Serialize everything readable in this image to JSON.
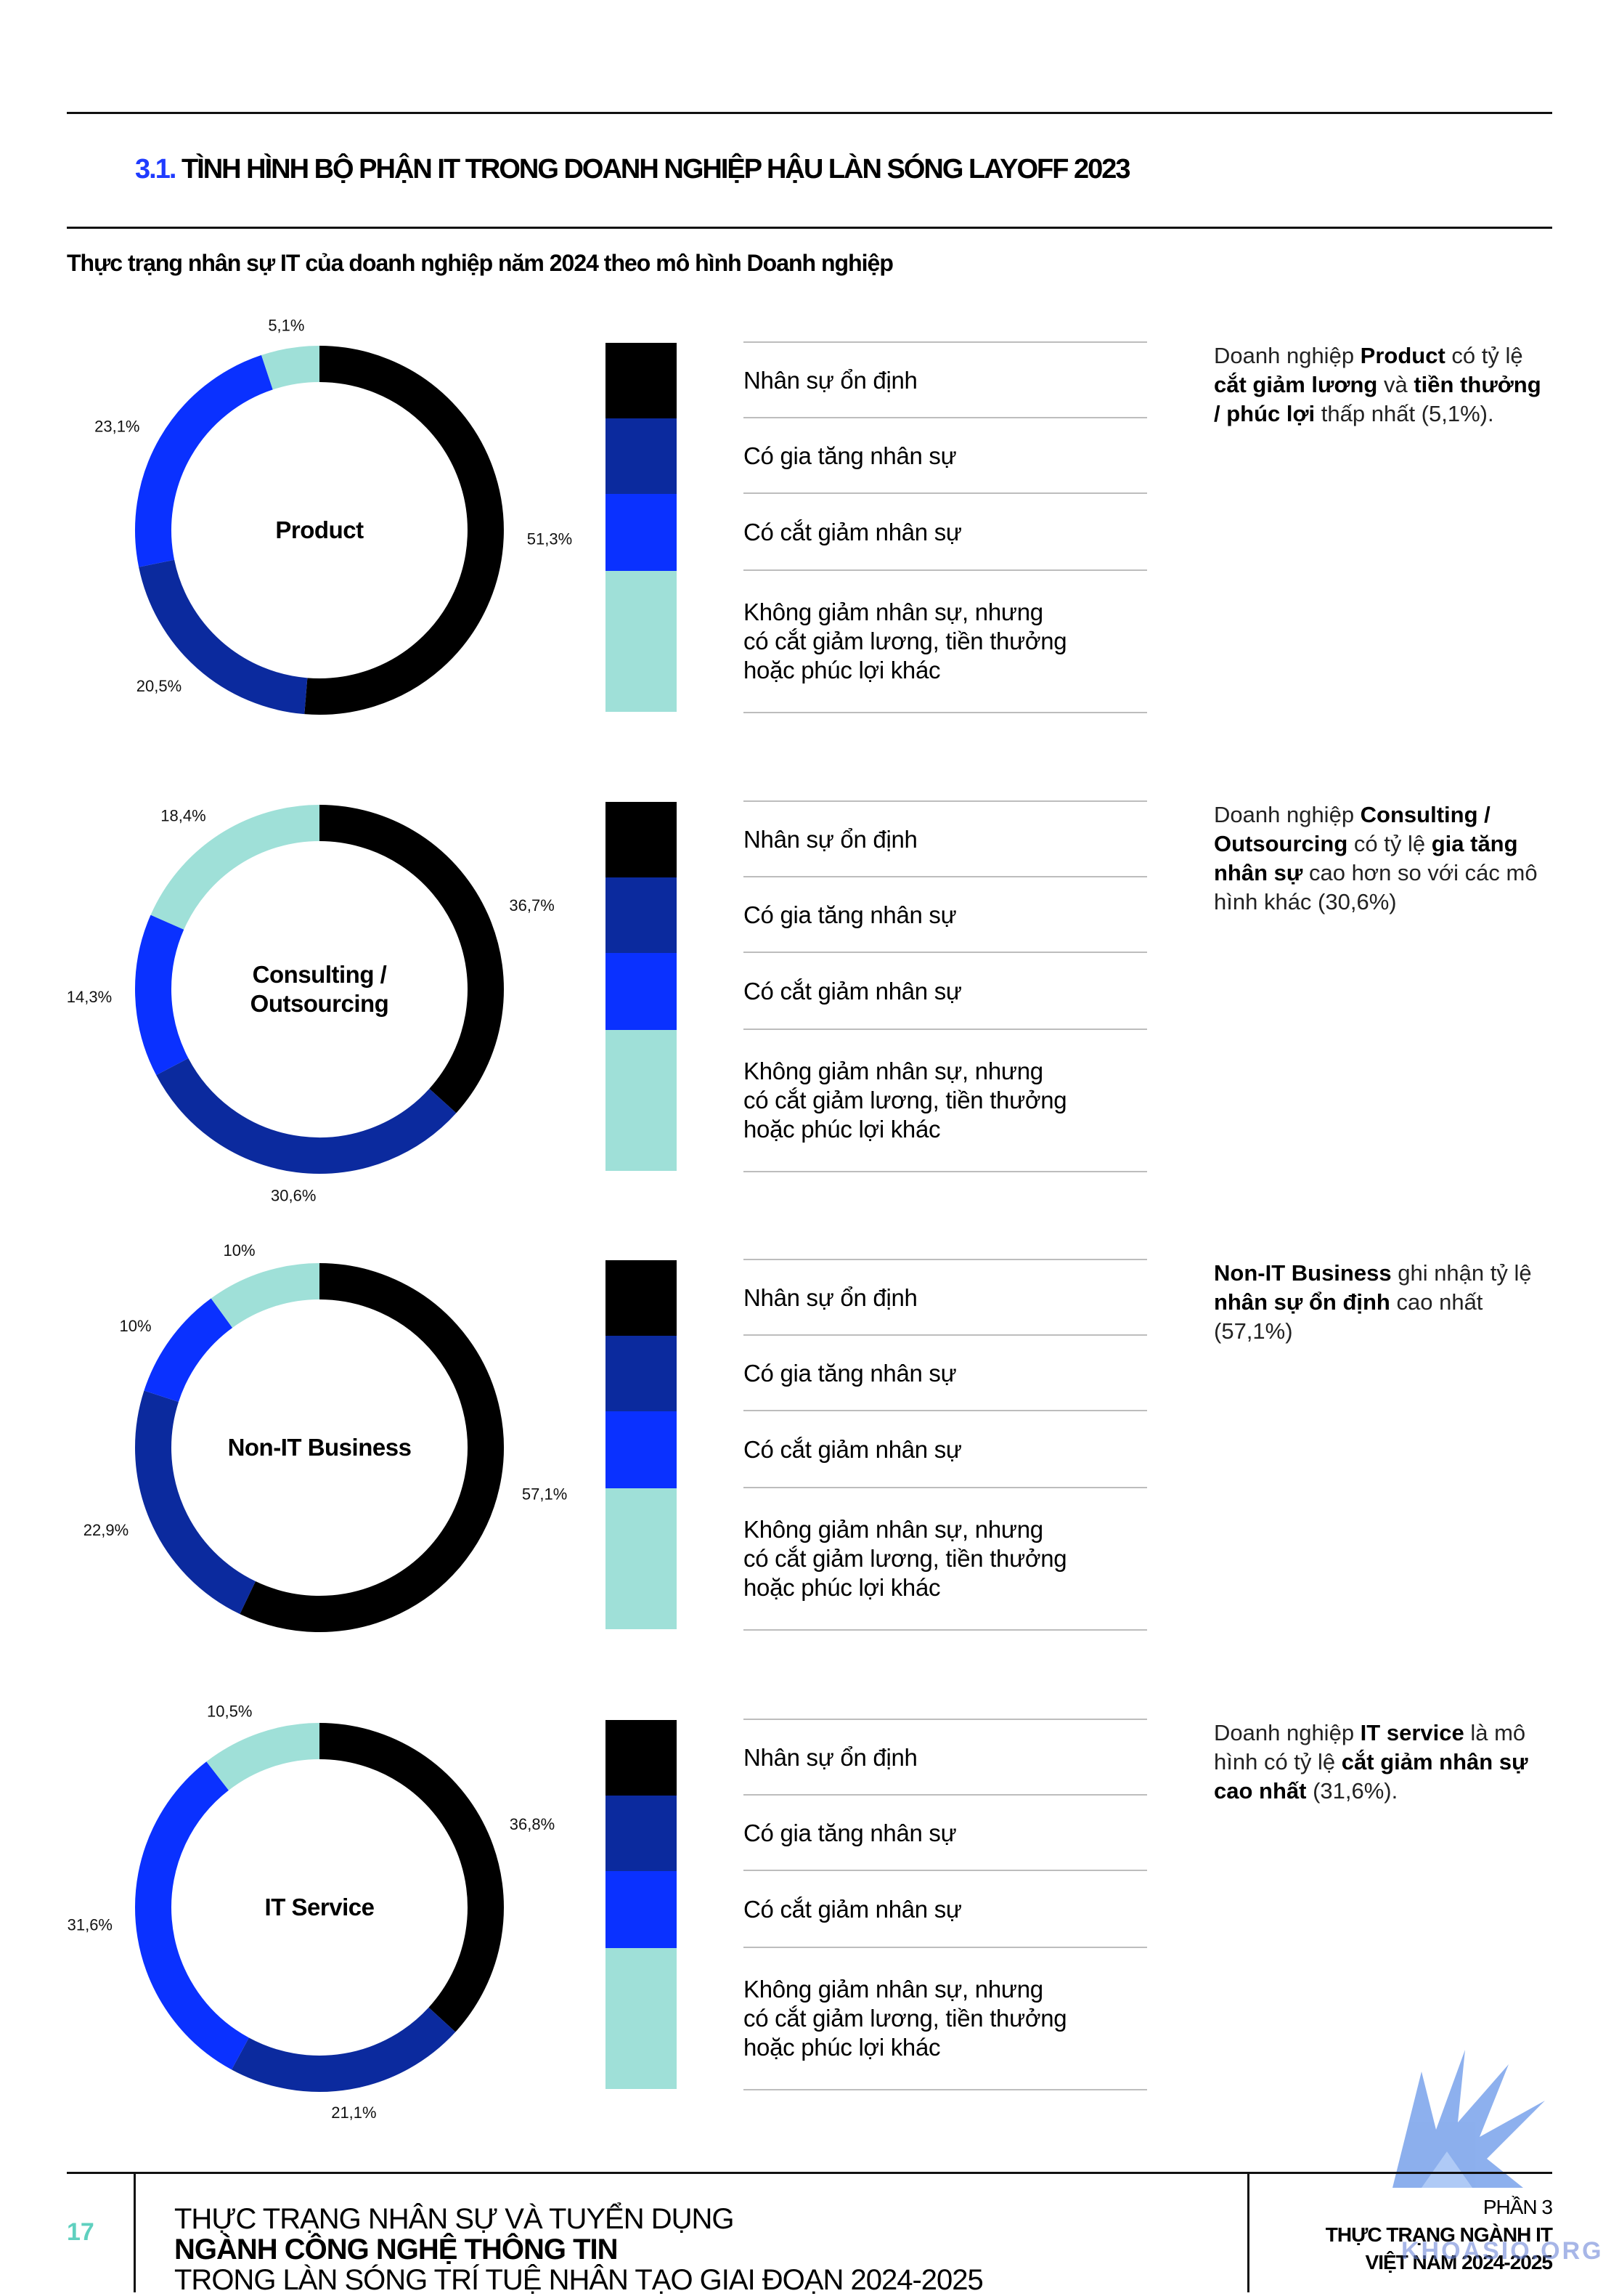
{
  "section": {
    "number": "3.1.",
    "title": "TÌNH HÌNH BỘ PHẬN IT TRONG DOANH NGHIỆP HẬU LÀN SÓNG LAYOFF 2023"
  },
  "subtitle": "Thực trạng nhân sự IT của doanh nghiệp năm 2024 theo mô hình Doanh nghiệp",
  "legend": {
    "colors": [
      "#000000",
      "#0b2a9e",
      "#0a31ff",
      "#9fe0d8"
    ],
    "items": [
      {
        "lines": [
          "Nhân sự ổn định"
        ]
      },
      {
        "lines": [
          "Có gia tăng nhân sự"
        ]
      },
      {
        "lines": [
          "Có cắt giảm nhân sự"
        ]
      },
      {
        "lines": [
          "Không giảm nhân sự, nhưng",
          "có cắt giảm lương, tiền thưởng",
          "hoặc phúc lợi khác"
        ]
      }
    ]
  },
  "chart_data": [
    {
      "type": "pie",
      "title": "Product",
      "title_lines": [
        "Product"
      ],
      "categories": [
        "Nhân sự ổn định",
        "Có gia tăng nhân sự",
        "Có cắt giảm nhân sự",
        "Không giảm nhân sự, nhưng có cắt giảm lương, tiền thưởng hoặc phúc lợi khác"
      ],
      "values": [
        51.3,
        20.5,
        23.1,
        5.1
      ],
      "labels": [
        "51,3%",
        "20,5%",
        "23,1%",
        "5,1%"
      ],
      "donut": true
    },
    {
      "type": "pie",
      "title": "Consulting / Outsourcing",
      "title_lines": [
        "Consulting /",
        "Outsourcing"
      ],
      "categories": [
        "Nhân sự ổn định",
        "Có gia tăng nhân sự",
        "Có cắt giảm nhân sự",
        "Không giảm nhân sự, nhưng có cắt giảm lương, tiền thưởng hoặc phúc lợi khác"
      ],
      "values": [
        36.7,
        30.6,
        14.3,
        18.4
      ],
      "labels": [
        "36,7%",
        "30,6%",
        "14,3%",
        "18,4%"
      ],
      "donut": true
    },
    {
      "type": "pie",
      "title": "Non-IT Business",
      "title_lines": [
        "Non-IT Business"
      ],
      "categories": [
        "Nhân sự ổn định",
        "Có gia tăng nhân sự",
        "Có cắt giảm nhân sự",
        "Không giảm nhân sự, nhưng có cắt giảm lương, tiền thưởng hoặc phúc lợi khác"
      ],
      "values": [
        57.1,
        22.9,
        10,
        10
      ],
      "labels": [
        "57,1%",
        "22,9%",
        "10%",
        "10%"
      ],
      "donut": true
    },
    {
      "type": "pie",
      "title": "IT Service",
      "title_lines": [
        "IT Service"
      ],
      "categories": [
        "Nhân sự ổn định",
        "Có gia tăng nhân sự",
        "Có cắt giảm nhân sự",
        "Không giảm nhân sự, nhưng có cắt giảm lương, tiền thưởng hoặc phúc lợi khác"
      ],
      "values": [
        36.8,
        21.1,
        31.6,
        10.5
      ],
      "labels": [
        "36,8%",
        "21,1%",
        "31,6%",
        "10,5%"
      ],
      "donut": true
    }
  ],
  "notes": [
    [
      {
        "t": "Doanh nghiệp ",
        "b": false
      },
      {
        "t": "Product",
        "b": true
      },
      {
        "t": " có tỷ lệ ",
        "b": false
      },
      {
        "t": "cắt giảm lương",
        "b": true
      },
      {
        "t": " và ",
        "b": false
      },
      {
        "t": "tiền thưởng / phúc lợi",
        "b": true
      },
      {
        "t": " thấp nhất (5,1%).",
        "b": false
      }
    ],
    [
      {
        "t": "Doanh nghiệp ",
        "b": false
      },
      {
        "t": "Consulting / Outsourcing",
        "b": true
      },
      {
        "t": " có tỷ lệ ",
        "b": false
      },
      {
        "t": "gia tăng nhân sự",
        "b": true
      },
      {
        "t": " cao hơn so với các mô hình khác (30,6%)",
        "b": false
      }
    ],
    [
      {
        "t": "Non-IT Business",
        "b": true
      },
      {
        "t": " ghi nhận tỷ lệ ",
        "b": false
      },
      {
        "t": "nhân sự ổn định",
        "b": true
      },
      {
        "t": " cao nhất (57,1%)",
        "b": false
      }
    ],
    [
      {
        "t": "Doanh nghiệp ",
        "b": false
      },
      {
        "t": "IT service",
        "b": true
      },
      {
        "t": " là mô hình có tỷ lệ ",
        "b": false
      },
      {
        "t": "cắt giảm nhân sự cao nhất",
        "b": true
      },
      {
        "t": " (31,6%).",
        "b": false
      }
    ]
  ],
  "footer": {
    "page": "17",
    "line1_regular": "THỰC TRẠNG NHÂN SỰ VÀ TUYỂN DỤNG ",
    "line1_bold": "NGÀNH CÔNG NGHỆ THÔNG TIN",
    "line2": "TRONG LÀN SÓNG TRÍ TUỆ NHÂN TẠO GIAI ĐOẠN 2024-2025",
    "part": "PHẦN 3",
    "part_title_1": "THỰC TRẠNG NGÀNH IT",
    "part_title_2": "VIỆT NAM 2024-2025"
  },
  "watermark": "KHOASIO.ORG"
}
